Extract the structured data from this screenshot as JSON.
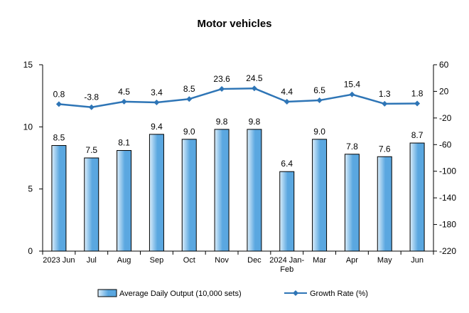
{
  "chart_data": {
    "type": "bar",
    "title": "Motor vehicles",
    "categories": [
      "2023 Jun",
      "Jul",
      "Aug",
      "Sep",
      "Oct",
      "Nov",
      "Dec",
      "2024 Jan-Feb",
      "Mar",
      "Apr",
      "May",
      "Jun"
    ],
    "series": [
      {
        "name": "Average Daily Output (10,000 sets)",
        "type": "bar",
        "axis": "left",
        "values": [
          8.5,
          7.5,
          8.1,
          9.4,
          9.0,
          9.8,
          9.8,
          6.4,
          9.0,
          7.8,
          7.6,
          8.7
        ],
        "labels": [
          "8.5",
          "7.5",
          "8.1",
          "9.4",
          "9.0",
          "9.8",
          "9.8",
          "6.4",
          "9.0",
          "7.8",
          "7.6",
          "8.7"
        ]
      },
      {
        "name": "Growth Rate (%)",
        "type": "line",
        "axis": "right",
        "values": [
          0.8,
          -3.8,
          4.5,
          3.4,
          8.5,
          23.6,
          24.5,
          4.4,
          6.5,
          15.4,
          1.3,
          1.8
        ],
        "labels": [
          "0.8",
          "-3.8",
          "4.5",
          "3.4",
          "8.5",
          "23.6",
          "24.5",
          "4.4",
          "6.5",
          "15.4",
          "1.3",
          "1.8"
        ]
      }
    ],
    "y_left": {
      "min": 0,
      "max": 15,
      "ticks": [
        "0",
        "5",
        "10",
        "15"
      ]
    },
    "y_right": {
      "min": -220,
      "max": 60,
      "ticks": [
        "-220",
        "-180",
        "-140",
        "-100",
        "-60",
        "-20",
        "20",
        "60"
      ]
    },
    "grid": false,
    "legend_position": "bottom",
    "colors": {
      "bar_fill_light": "#dbeefb",
      "bar_fill_dark": "#5aa7e0",
      "bar_stroke": "#000000",
      "line": "#2e75b6",
      "axis": "#000000"
    }
  }
}
